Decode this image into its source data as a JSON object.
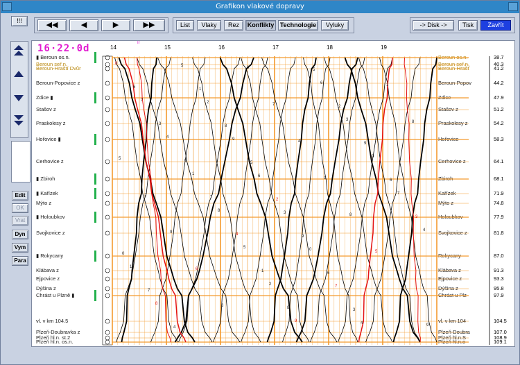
{
  "window": {
    "title": "Grafikon vlakové dopravy"
  },
  "toolbar": {
    "menu_label": "!!!",
    "nav": [
      "◀◀",
      "◀",
      "▶",
      "▶▶"
    ],
    "views": [
      {
        "label": "List",
        "active": false
      },
      {
        "label": "Vlaky",
        "active": false
      },
      {
        "label": "Rez",
        "active": false
      },
      {
        "label": "Konflikty",
        "active": false
      },
      {
        "label": "Technologie",
        "active": false
      },
      {
        "label": "Vyluky",
        "active": false
      }
    ],
    "disk_label": "-> Disk ->",
    "print_label": "Tisk",
    "close_label": "Zavřít"
  },
  "side": {
    "buttons": [
      "Edit",
      "OK",
      "Vrat",
      "Dyn",
      "Vym",
      "Para"
    ]
  },
  "graph": {
    "clock": "16·22·0d",
    "hours": [
      "14",
      "15",
      "16",
      "17",
      "18",
      "19"
    ],
    "marker": "Ir",
    "left_stations": [
      "▮ Beroun os.n.",
      "Beroun seř.n.",
      "Beroun-Hraští Dvůr",
      "Beroun-Popovice z",
      "Zdice ▮",
      "Stašov z",
      "Praskolesy z",
      "Hořovice ▮",
      "Cerhovice z",
      "▮ Zbiroh",
      "▮ Kařízek",
      "Mýto z",
      "▮ Holoubkov",
      "Svojkovice z",
      "▮ Rokycany",
      "Kläbava z",
      "Ejpovice z",
      "Dýšina z",
      "Chrást u Plzně ▮",
      "vl. v km 104.5",
      "Plzeň-Doubravka z",
      "Plzeň hl.n. st.2",
      "Plzeň hl.n. os.n."
    ],
    "right_stations": [
      "Beroun os.n.",
      "Beroun seř.n.",
      "Beroun-Hrašť",
      "Beroun-Popov",
      "Zdice",
      "Stašov z",
      "Praskolesy z",
      "Hořovice",
      "Cerhovice z",
      "Zbiroh",
      "Kařízek",
      "Mýto z",
      "Holoubkov",
      "Svojkovice z",
      "Rokycany",
      "Kläbava z",
      "Ejpovice z",
      "Dýšina z",
      "Chrást u Plz",
      "vl. v km 104",
      "Plzeň-Doubra",
      "Plzeň hl.n.S",
      "Plzeň hl.n.o"
    ],
    "km": [
      "38.7",
      "40.3",
      "41.2",
      "44.2",
      "47.9",
      "51.2",
      "54.2",
      "58.3",
      "64.1",
      "68.1",
      "71.9",
      "74.8",
      "77.9",
      "81.8",
      "87.0",
      "91.3",
      "93.3",
      "95.8",
      "97.9",
      "104.5",
      "107.0",
      "108.9",
      "109.1"
    ],
    "colors": {
      "grid": "#f39a2d",
      "grid_minor": "#f5b76a",
      "train_red": "#e41313",
      "train_black": "#000000",
      "station_bar": "#23b14d"
    }
  }
}
